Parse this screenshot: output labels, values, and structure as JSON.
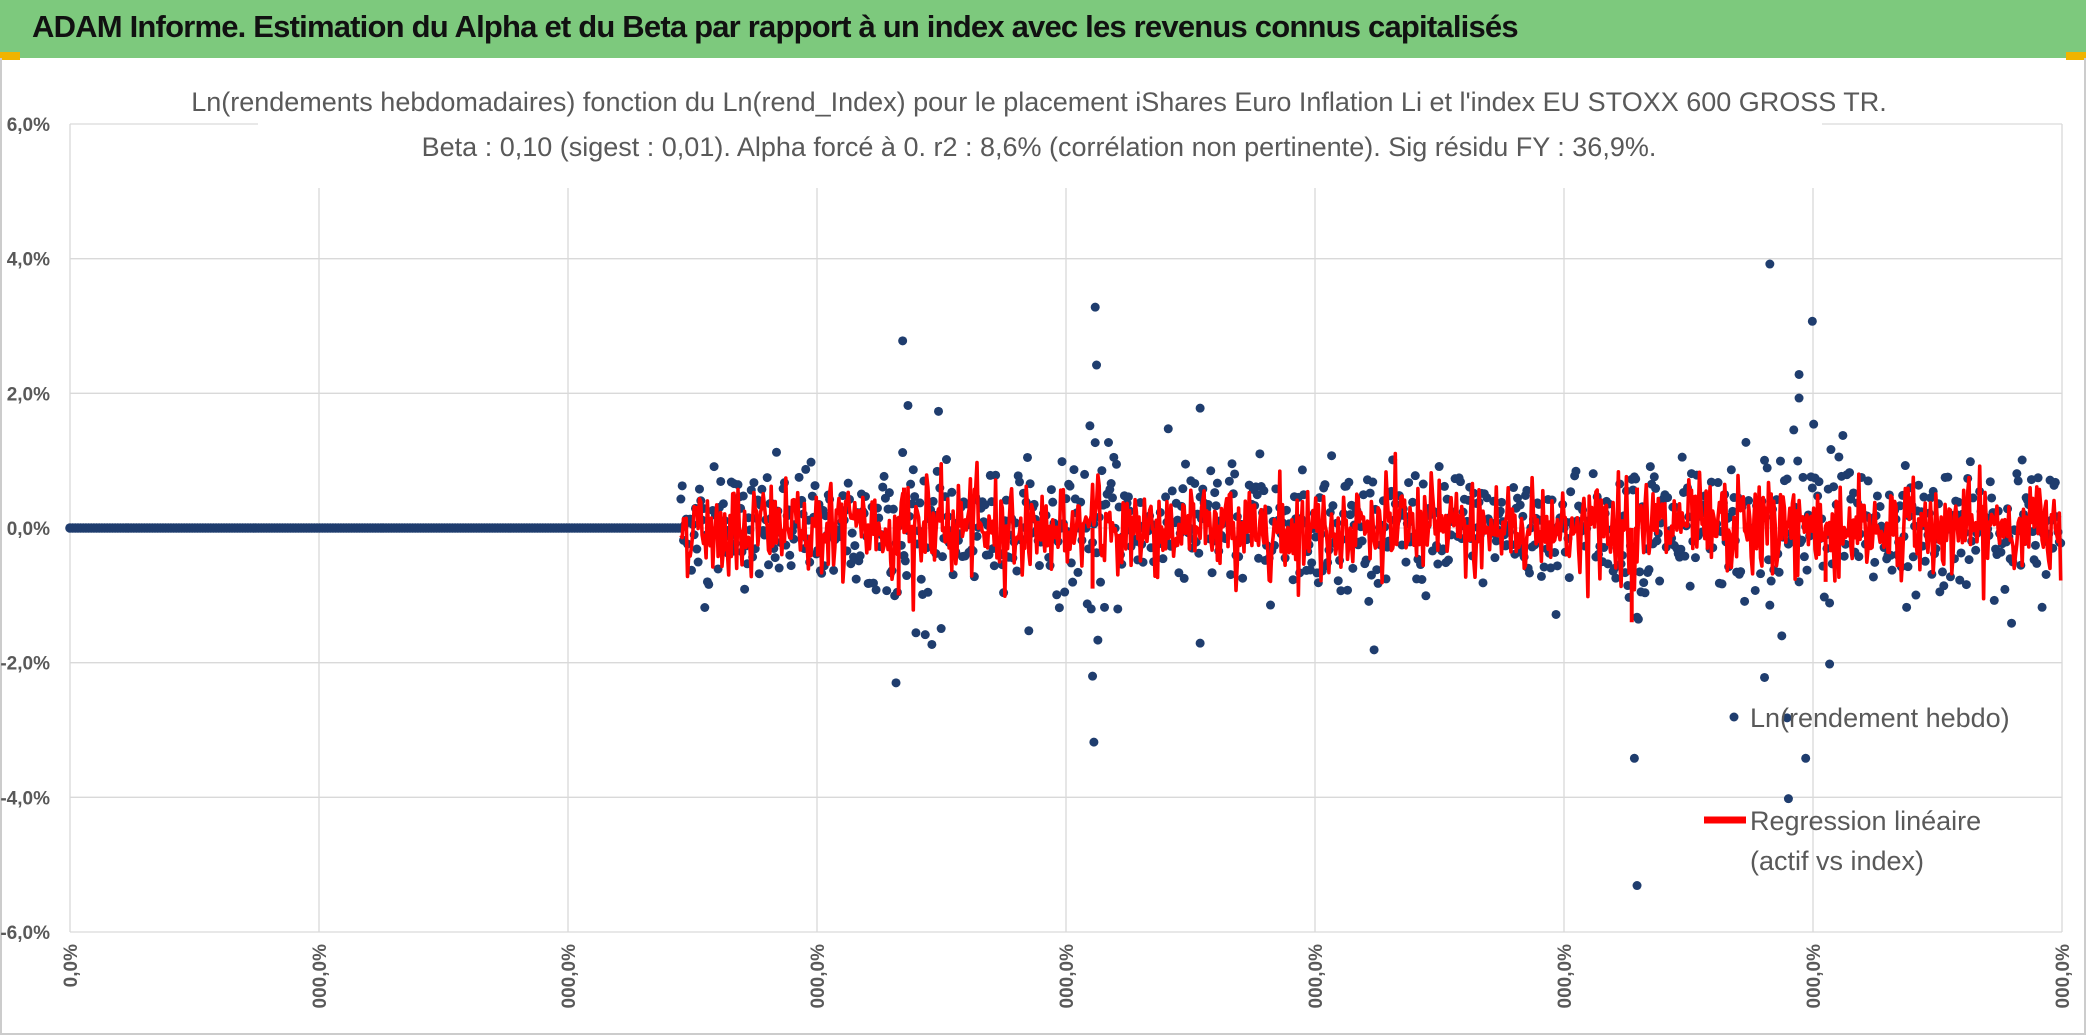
{
  "banner": {
    "title": "ADAM Informe. Estimation du Alpha et du Beta par rapport à un index avec les revenus connus capitalisés"
  },
  "colors": {
    "banner_bg": "#7dc97d",
    "points": "#1f3d6e",
    "regression": "#ff0000",
    "grid": "#d9d9d9",
    "text": "#595959"
  },
  "chart_data": {
    "type": "scatter",
    "title_line1": "Ln(rendements hebdomadaires) fonction du Ln(rend_Index) pour le placement iShares Euro Inflation Li et l'index EU STOXX 600 GROSS TR.",
    "title_line2": "Beta : 0,10 (sigest : 0,01). Alpha forcé à 0. r2 : 8,6% (corrélation non pertinente). Sig résidu FY : 36,9%.",
    "y_ticks": [
      "6,0%",
      "4,0%",
      "2,0%",
      "0,0%",
      "-2,0%",
      "-4,0%",
      "-6,0%"
    ],
    "x_ticks": [
      "0,0%",
      "000,0%",
      "000,0%",
      "000,0%",
      "000,0%",
      "000,0%",
      "000,0%",
      "000,0%",
      "000,0%"
    ],
    "ylim": [
      -0.06,
      0.06
    ],
    "x_range_index": [
      0,
      1500
    ],
    "grid": true,
    "legend_position": "right-bottom",
    "series": [
      {
        "name": "Ln(rendement hebdo)",
        "marker": "dot",
        "flat_until_index": 460,
        "points_count": 1500,
        "outliers": [
          [
            622,
            -0.023
          ],
          [
            627,
            0.0278
          ],
          [
            631,
            0.0182
          ],
          [
            772,
            0.0328
          ],
          [
            773,
            0.0242
          ],
          [
            770,
            -0.022
          ],
          [
            771,
            -0.0318
          ],
          [
            851,
            0.0178
          ],
          [
            851,
            -0.0171
          ],
          [
            1178,
            -0.0342
          ],
          [
            1180,
            -0.0531
          ],
          [
            1280,
            0.0392
          ],
          [
            1312,
            0.0307
          ],
          [
            1302,
            0.0228
          ],
          [
            1302,
            0.0193
          ],
          [
            1294,
            -0.0402
          ],
          [
            1307,
            -0.0342
          ],
          [
            1293,
            -0.0282
          ],
          [
            1325,
            -0.0202
          ],
          [
            1276,
            -0.0222
          ]
        ]
      },
      {
        "name": "Regression linéaire\n(actif vs index)",
        "name_line1": "Regression linéaire",
        "name_line2": "(actif vs index)",
        "marker": "line",
        "beta": 0.1
      }
    ]
  }
}
